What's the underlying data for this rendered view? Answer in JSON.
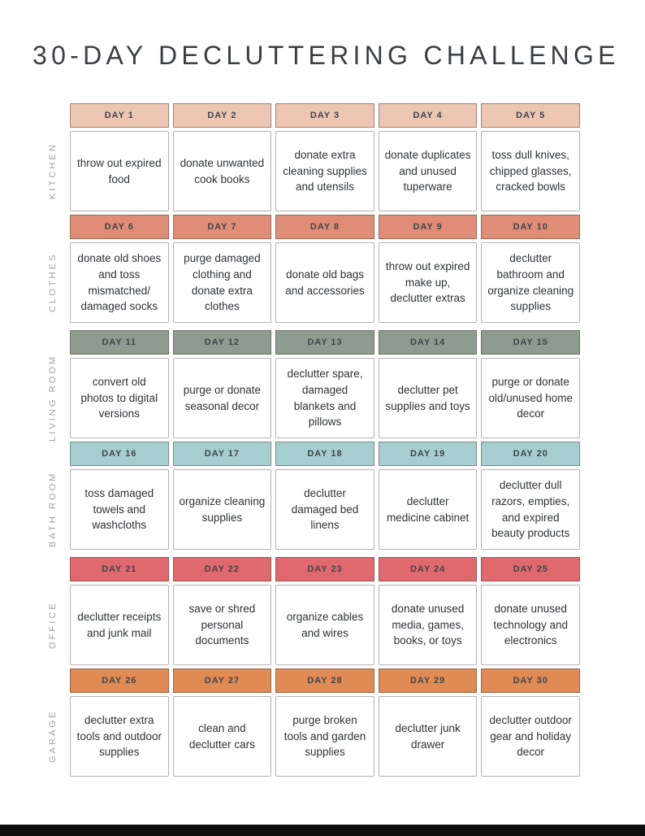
{
  "page": {
    "title": "30-DAY DECLUTTERING CHALLENGE"
  },
  "colors": {
    "peach": "#ecc5b3",
    "salmon": "#df8d77",
    "sage": "#8d9c8e",
    "teal": "#a6ced0",
    "red": "#df696e",
    "orange": "#e08a54"
  },
  "sections": [
    {
      "category": "KITCHEN",
      "header_color": "#ecc5b3",
      "days": [
        "DAY 1",
        "DAY 2",
        "DAY 3",
        "DAY 4",
        "DAY 5"
      ],
      "tasks": [
        "throw out expired food",
        "donate unwanted cook books",
        "donate extra cleaning supplies and utensils",
        "donate duplicates and unused tuperware",
        "toss dull knives, chipped glasses, cracked bowls"
      ]
    },
    {
      "category": "CLOTHES",
      "header_color": "#df8d77",
      "days": [
        "DAY 6",
        "DAY 7",
        "DAY 8",
        "DAY 9",
        "DAY 10"
      ],
      "tasks": [
        "donate old shoes and toss mismatched/ damaged socks",
        "purge damaged clothing and donate extra clothes",
        "donate old bags and accessories",
        "throw out expired make up, declutter extras",
        "declutter bathroom and organize cleaning supplies"
      ]
    },
    {
      "category": "LIVING ROOM",
      "header_color": "#8d9c8e",
      "days": [
        "DAY 11",
        "DAY 12",
        "DAY 13",
        "DAY 14",
        "DAY 15"
      ],
      "tasks": [
        "convert old photos to digital versions",
        "purge or donate seasonal decor",
        "declutter spare, damaged blankets and pillows",
        "declutter pet supplies and toys",
        "purge or donate old/unused home decor"
      ]
    },
    {
      "category": "BATH ROOM",
      "header_color": "#a6ced0",
      "days": [
        "DAY 16",
        "DAY 17",
        "DAY 18",
        "DAY 19",
        "DAY 20"
      ],
      "tasks": [
        "toss damaged towels and washcloths",
        "organize cleaning supplies",
        "declutter damaged bed linens",
        "declutter medicine cabinet",
        "declutter dull razors, empties, and expired beauty products"
      ]
    },
    {
      "category": "OFFICE",
      "header_color": "#df696e",
      "days": [
        "DAY 21",
        "DAY 22",
        "DAY 23",
        "DAY 24",
        "DAY 25"
      ],
      "tasks": [
        "declutter receipts and junk mail",
        "save or shred personal documents",
        "organize cables and wires",
        "donate unused media, games, books, or toys",
        "donate unused technology and electronics"
      ]
    },
    {
      "category": "GARAGE",
      "header_color": "#e08a54",
      "days": [
        "DAY 26",
        "DAY 27",
        "DAY 28",
        "DAY 29",
        "DAY 30"
      ],
      "tasks": [
        "declutter extra tools and outdoor supplies",
        "clean and declutter cars",
        "purge broken tools and garden supplies",
        "declutter junk drawer",
        "declutter outdoor gear and holiday decor"
      ]
    }
  ]
}
